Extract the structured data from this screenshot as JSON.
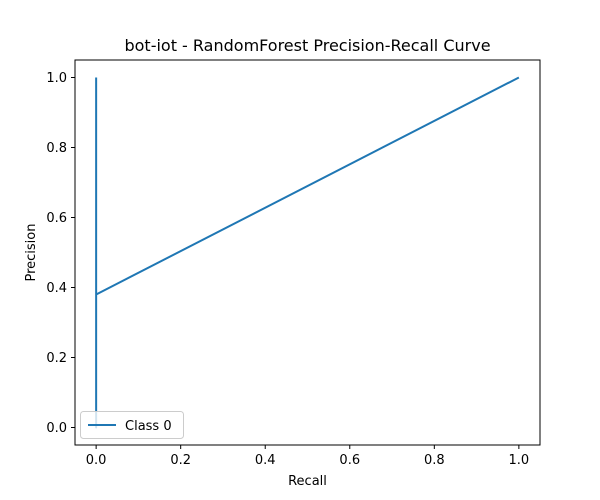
{
  "chart_data": {
    "type": "line",
    "title": "bot-iot - RandomForest Precision-Recall Curve",
    "xlabel": "Recall",
    "ylabel": "Precision",
    "xlim": [
      -0.05,
      1.05
    ],
    "ylim": [
      -0.05,
      1.05
    ],
    "xticks": [
      0.0,
      0.2,
      0.4,
      0.6,
      0.8,
      1.0
    ],
    "yticks": [
      0.0,
      0.2,
      0.4,
      0.6,
      0.8,
      1.0
    ],
    "xtick_labels": [
      "0.0",
      "0.2",
      "0.4",
      "0.6",
      "0.8",
      "1.0"
    ],
    "ytick_labels": [
      "0.0",
      "0.2",
      "0.4",
      "0.6",
      "0.8",
      "1.0"
    ],
    "grid": false,
    "legend": "lower-left",
    "series": [
      {
        "name": "Class 0",
        "color": "#1f77b4",
        "x": [
          0.0,
          0.0,
          0.0,
          1.0
        ],
        "y": [
          1.0,
          0.0,
          0.38,
          1.0
        ]
      }
    ]
  }
}
